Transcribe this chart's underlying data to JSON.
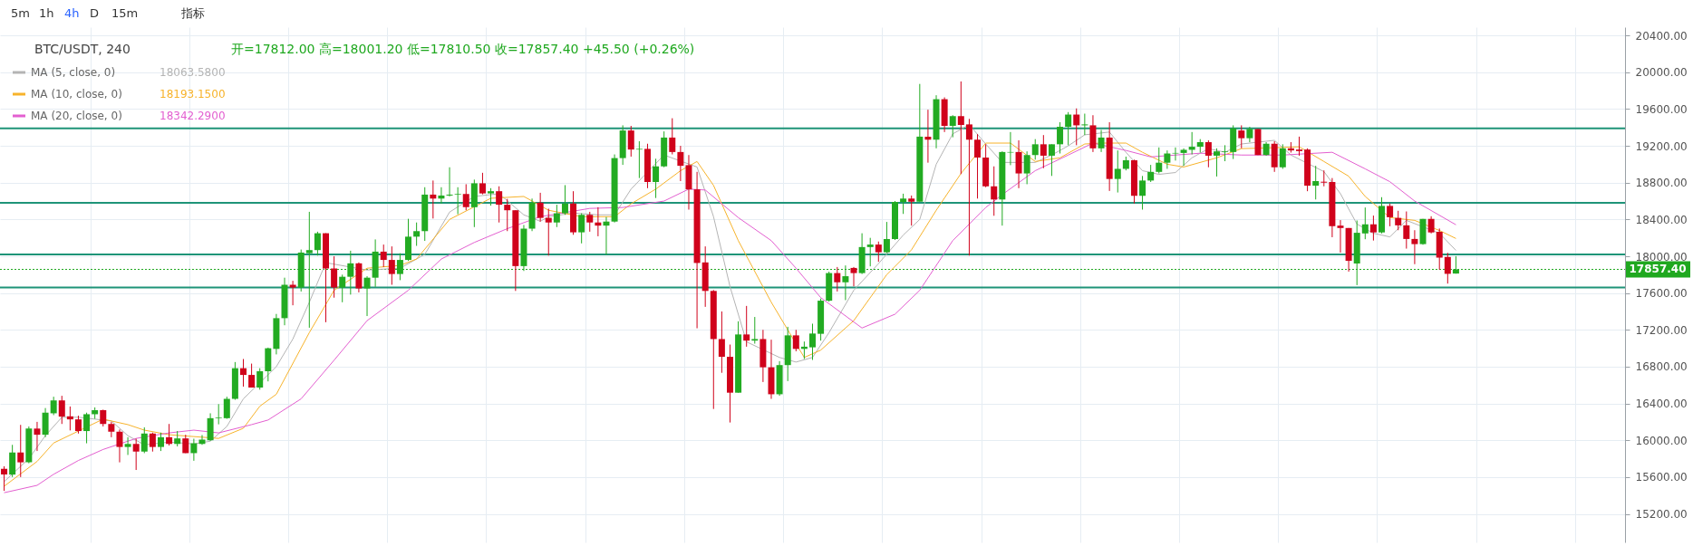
{
  "chart_data": {
    "type": "candlestick",
    "title": "BTC/USDT, 240",
    "subtitle": "开=17812.00  高=18001.20  低=17810.50  收=17857.40  +45.50 (+0.26%)",
    "categories": [
      null,
      null,
      null,
      null,
      null,
      null,
      null,
      null,
      null,
      null,
      null,
      null,
      null,
      null,
      null,
      null,
      null,
      null,
      null,
      null,
      null,
      null,
      null,
      null,
      null,
      null,
      null,
      null,
      null,
      null,
      null,
      null,
      null,
      null,
      null,
      null,
      null,
      null,
      null,
      null,
      null,
      null,
      null,
      null,
      null,
      null,
      null,
      null,
      null,
      null,
      null,
      null,
      null,
      null,
      null,
      null,
      null,
      null,
      null,
      null,
      null,
      null,
      null,
      null,
      null,
      null,
      null,
      null,
      null,
      null,
      null,
      null,
      null,
      null,
      null,
      null,
      null,
      null,
      null,
      null,
      null,
      null,
      null,
      null,
      null,
      null,
      null,
      null,
      null,
      null,
      null,
      null,
      null,
      null,
      null,
      null,
      null,
      null,
      null,
      null,
      null,
      null,
      null,
      null,
      null,
      null,
      null,
      null,
      null,
      null,
      null,
      null,
      null,
      null,
      null,
      null,
      null,
      null,
      null,
      null,
      null,
      null,
      null,
      null,
      null,
      null,
      null,
      null,
      null,
      null,
      null,
      null,
      null,
      null,
      null,
      null,
      null,
      null,
      null,
      null,
      null,
      null,
      null,
      null,
      null,
      null,
      null,
      null,
      null,
      null,
      null,
      null,
      null,
      null,
      null,
      null,
      null,
      null,
      null,
      null,
      null,
      null,
      null,
      null,
      null,
      null,
      null,
      null,
      null,
      null,
      null,
      null,
      null,
      null,
      null,
      null,
      null,
      null,
      null,
      null,
      null,
      null,
      null,
      null,
      null,
      null,
      null,
      null,
      null,
      null,
      null,
      null,
      null,
      null,
      null,
      null,
      null
    ],
    "ohlc": [
      [
        15690,
        15717,
        15450,
        15627
      ],
      [
        15627,
        15950,
        15600,
        15867
      ],
      [
        15867,
        16167,
        15600,
        15760
      ],
      [
        15760,
        16150,
        15750,
        16127
      ],
      [
        16127,
        16200,
        15883,
        16060
      ],
      [
        16060,
        16350,
        16033,
        16300
      ],
      [
        16293,
        16473,
        16273,
        16433
      ],
      [
        16433,
        16483,
        16177,
        16257
      ],
      [
        16260,
        16367,
        16107,
        16227
      ],
      [
        16227,
        16267,
        16073,
        16100
      ],
      [
        16100,
        16300,
        15967,
        16283
      ],
      [
        16283,
        16357,
        16233,
        16327
      ],
      [
        16327,
        16333,
        16150,
        16177
      ],
      [
        16177,
        16200,
        16033,
        16093
      ],
      [
        16093,
        16117,
        15760,
        15927
      ],
      [
        15927,
        16033,
        15840,
        15960
      ],
      [
        15960,
        16017,
        15677,
        15877
      ],
      [
        15877,
        16140,
        15860,
        16073
      ],
      [
        16073,
        16083,
        15877,
        15927
      ],
      [
        15927,
        16083,
        15883,
        16033
      ],
      [
        16033,
        16177,
        15943,
        15960
      ],
      [
        15960,
        16100,
        15933,
        16020
      ],
      [
        16020,
        16060,
        15860,
        15860
      ],
      [
        15860,
        16017,
        15777,
        15967
      ],
      [
        15960,
        16057,
        15950,
        16007
      ],
      [
        16000,
        16293,
        15993,
        16240
      ],
      [
        16240,
        16393,
        16173,
        16247
      ],
      [
        16240,
        16473,
        16233,
        16450
      ],
      [
        16450,
        16850,
        16440,
        16783
      ],
      [
        16783,
        16883,
        16583,
        16710
      ],
      [
        16710,
        16833,
        16573,
        16573
      ],
      [
        16573,
        16783,
        16550,
        16750
      ],
      [
        16750,
        17007,
        16640,
        17000
      ],
      [
        16993,
        17373,
        16933,
        17327
      ],
      [
        17327,
        17767,
        17250,
        17690
      ],
      [
        17690,
        17733,
        17467,
        17660
      ],
      [
        17660,
        18073,
        17617,
        18040
      ],
      [
        18033,
        18483,
        17223,
        18067
      ],
      [
        18067,
        18267,
        18007,
        18250
      ],
      [
        18250,
        18250,
        17283,
        17867
      ],
      [
        17867,
        18000,
        17550,
        17660
      ],
      [
        17660,
        17800,
        17500,
        17777
      ],
      [
        17777,
        18060,
        17583,
        17923
      ],
      [
        17923,
        17933,
        17607,
        17650
      ],
      [
        17650,
        17783,
        17350,
        17767
      ],
      [
        17767,
        18183,
        17667,
        18050
      ],
      [
        18050,
        18127,
        17883,
        17960
      ],
      [
        17960,
        18107,
        17690,
        17807
      ],
      [
        17807,
        18033,
        17740,
        17960
      ],
      [
        17960,
        18407,
        17950,
        18213
      ],
      [
        18213,
        18367,
        18113,
        18273
      ],
      [
        18273,
        18750,
        18167,
        18670
      ],
      [
        18670,
        18823,
        18410,
        18627
      ],
      [
        18627,
        18750,
        18573,
        18660
      ],
      [
        18660,
        18967,
        18650,
        18670
      ],
      [
        18670,
        18750,
        18457,
        18677
      ],
      [
        18677,
        18783,
        18500,
        18533
      ],
      [
        18533,
        18833,
        18317,
        18793
      ],
      [
        18793,
        18907,
        18673,
        18683
      ],
      [
        18683,
        18740,
        18550,
        18707
      ],
      [
        18707,
        18760,
        18367,
        18560
      ],
      [
        18560,
        18623,
        18273,
        18500
      ],
      [
        18500,
        18500,
        17623,
        17893
      ],
      [
        17893,
        18340,
        17840,
        18300
      ],
      [
        18300,
        18627,
        18273,
        18583
      ],
      [
        18583,
        18690,
        18377,
        18417
      ],
      [
        18417,
        18517,
        18007,
        18367
      ],
      [
        18367,
        18560,
        18317,
        18467
      ],
      [
        18467,
        18773,
        18450,
        18573
      ],
      [
        18573,
        18707,
        18233,
        18260
      ],
      [
        18260,
        18467,
        18140,
        18450
      ],
      [
        18450,
        18483,
        18267,
        18367
      ],
      [
        18367,
        18533,
        18217,
        18333
      ],
      [
        18333,
        18427,
        18017,
        18377
      ],
      [
        18377,
        19107,
        18367,
        19067
      ],
      [
        19067,
        19423,
        18993,
        19367
      ],
      [
        19367,
        19417,
        19083,
        19160
      ],
      [
        19160,
        19250,
        18850,
        19167
      ],
      [
        19167,
        19223,
        18740,
        18807
      ],
      [
        18807,
        19060,
        18633,
        18977
      ],
      [
        18977,
        19357,
        18967,
        19290
      ],
      [
        19290,
        19500,
        19107,
        19133
      ],
      [
        19133,
        19200,
        18817,
        18983
      ],
      [
        18990,
        19100,
        18507,
        18727
      ],
      [
        18727,
        18917,
        17217,
        17927
      ],
      [
        17933,
        18107,
        17450,
        17623
      ],
      [
        17623,
        17633,
        16340,
        17100
      ],
      [
        17100,
        17400,
        16733,
        16907
      ],
      [
        16907,
        17040,
        16193,
        16517
      ],
      [
        16517,
        17293,
        16517,
        17150
      ],
      [
        17150,
        17460,
        17017,
        17083
      ],
      [
        17083,
        17340,
        17050,
        17100
      ],
      [
        17100,
        17200,
        16633,
        16793
      ],
      [
        16793,
        17093,
        16450,
        16500
      ],
      [
        16500,
        16860,
        16483,
        16817
      ],
      [
        16817,
        17233,
        16643,
        17140
      ],
      [
        17140,
        17200,
        16967,
        16993
      ],
      [
        16993,
        17073,
        16883,
        17017
      ],
      [
        17010,
        17267,
        16873,
        17160
      ],
      [
        17157,
        17540,
        17083,
        17517
      ],
      [
        17517,
        17833,
        17507,
        17817
      ],
      [
        17817,
        17883,
        17617,
        17717
      ],
      [
        17717,
        17900,
        17523,
        17783
      ],
      [
        17873,
        17883,
        17673,
        17817
      ],
      [
        17817,
        18250,
        17807,
        18100
      ],
      [
        18100,
        18200,
        17890,
        18127
      ],
      [
        18127,
        18160,
        17940,
        18043
      ],
      [
        18043,
        18373,
        18033,
        18187
      ],
      [
        18187,
        18600,
        18177,
        18590
      ],
      [
        18590,
        18680,
        18460,
        18627
      ],
      [
        18627,
        18660,
        18333,
        18593
      ],
      [
        18593,
        19873,
        18593,
        19300
      ],
      [
        19300,
        19593,
        19017,
        19267
      ],
      [
        19267,
        19750,
        19173,
        19707
      ],
      [
        19707,
        19727,
        19350,
        19417
      ],
      [
        19417,
        19533,
        19293,
        19523
      ],
      [
        19523,
        19900,
        18893,
        19427
      ],
      [
        19433,
        19493,
        18007,
        19267
      ],
      [
        19267,
        19327,
        18627,
        19073
      ],
      [
        19073,
        19217,
        18750,
        18760
      ],
      [
        18760,
        18977,
        18440,
        18617
      ],
      [
        18617,
        19140,
        18333,
        19133
      ],
      [
        19127,
        19350,
        18990,
        19133
      ],
      [
        19133,
        19260,
        18740,
        18900
      ],
      [
        18900,
        19140,
        18783,
        19100
      ],
      [
        19100,
        19273,
        19050,
        19217
      ],
      [
        19217,
        19317,
        18957,
        19093
      ],
      [
        19093,
        19217,
        18873,
        19217
      ],
      [
        19217,
        19457,
        19117,
        19407
      ],
      [
        19407,
        19567,
        19207,
        19540
      ],
      [
        19540,
        19607,
        19207,
        19423
      ],
      [
        19423,
        19550,
        19317,
        19433
      ],
      [
        19423,
        19533,
        19133,
        19173
      ],
      [
        19173,
        19373,
        19133,
        19290
      ],
      [
        19290,
        19457,
        18710,
        18840
      ],
      [
        18840,
        19150,
        18693,
        18950
      ],
      [
        18950,
        19083,
        18933,
        19043
      ],
      [
        19043,
        19050,
        18573,
        18657
      ],
      [
        18657,
        18873,
        18507,
        18823
      ],
      [
        18823,
        18993,
        18807,
        18917
      ],
      [
        18917,
        19183,
        18900,
        19017
      ],
      [
        19017,
        19150,
        18950,
        19117
      ],
      [
        19117,
        19183,
        19040,
        19123
      ],
      [
        19123,
        19173,
        18983,
        19157
      ],
      [
        19157,
        19350,
        19107,
        19190
      ],
      [
        19190,
        19273,
        19127,
        19240
      ],
      [
        19240,
        19260,
        18967,
        19093
      ],
      [
        19093,
        19173,
        18867,
        19140
      ],
      [
        19133,
        19207,
        19033,
        19140
      ],
      [
        19133,
        19423,
        19057,
        19390
      ],
      [
        19367,
        19423,
        19173,
        19283
      ],
      [
        19283,
        19407,
        19240,
        19383
      ],
      [
        19383,
        19383,
        19100,
        19100
      ],
      [
        19100,
        19240,
        19093,
        19223
      ],
      [
        19223,
        19250,
        18917,
        18967
      ],
      [
        18967,
        19217,
        18950,
        19173
      ],
      [
        19173,
        19240,
        19127,
        19150
      ],
      [
        19160,
        19300,
        19093,
        19143
      ],
      [
        19160,
        19173,
        18707,
        18767
      ],
      [
        18767,
        18983,
        18617,
        18817
      ],
      [
        18810,
        18933,
        18760,
        18800
      ],
      [
        18807,
        18850,
        18207,
        18327
      ],
      [
        18333,
        18393,
        18040,
        18307
      ],
      [
        18307,
        18307,
        17833,
        17950
      ],
      [
        17921,
        18389,
        17686,
        18255
      ],
      [
        18248,
        18530,
        18185,
        18347
      ],
      [
        18347,
        18442,
        18171,
        18259
      ],
      [
        18259,
        18642,
        18248,
        18547
      ],
      [
        18547,
        18572,
        18326,
        18424
      ],
      [
        18417,
        18494,
        18283,
        18336
      ],
      [
        18336,
        18487,
        18083,
        18188
      ],
      [
        18188,
        18283,
        17914,
        18132
      ],
      [
        18132,
        18406,
        18125,
        18406
      ],
      [
        18406,
        18435,
        18248,
        18259
      ],
      [
        18266,
        18301,
        17854,
        17985
      ],
      [
        17992,
        18037,
        17703,
        17809
      ],
      [
        17812,
        18001.2,
        17810.5,
        17857.4
      ],
      null,
      null,
      null,
      null,
      null,
      null,
      null,
      null,
      null,
      null,
      null,
      null,
      null,
      null,
      null,
      null,
      null,
      null,
      null,
      null
    ],
    "colors": [
      "#d0021b",
      "#22ab22",
      "#d0021b",
      "#22ab22",
      "#d0021b",
      "#22ab22",
      "#22ab22",
      "#d0021b",
      "#d0021b",
      "#d0021b",
      "#22ab22",
      "#22ab22",
      "#d0021b",
      "#d0021b",
      "#d0021b",
      "#22ab22",
      "#d0021b",
      "#22ab22",
      "#d0021b",
      "#22ab22",
      "#d0021b",
      "#22ab22",
      "#d0021b",
      "#22ab22",
      "#22ab22",
      "#22ab22",
      "#22ab22",
      "#22ab22",
      "#22ab22",
      "#d0021b",
      "#d0021b",
      "#22ab22",
      "#22ab22",
      "#22ab22",
      "#22ab22",
      "#d0021b",
      "#22ab22",
      "#22ab22",
      "#22ab22",
      "#d0021b",
      "#d0021b",
      "#22ab22",
      "#22ab22",
      "#d0021b",
      "#22ab22",
      "#22ab22",
      "#d0021b",
      "#d0021b",
      "#22ab22",
      "#22ab22",
      "#22ab22",
      "#22ab22",
      "#d0021b",
      "#22ab22",
      "#22ab22",
      "#22ab22",
      "#d0021b",
      "#22ab22",
      "#d0021b",
      "#22ab22",
      "#d0021b",
      "#d0021b",
      "#d0021b",
      "#22ab22",
      "#22ab22",
      "#d0021b",
      "#d0021b",
      "#22ab22",
      "#22ab22",
      "#d0021b",
      "#22ab22",
      "#d0021b",
      "#d0021b",
      "#22ab22",
      "#22ab22",
      "#22ab22",
      "#d0021b",
      "#22ab22",
      "#d0021b",
      "#22ab22",
      "#22ab22",
      "#d0021b",
      "#d0021b",
      "#d0021b",
      "#d0021b",
      "#d0021b",
      "#d0021b",
      "#d0021b",
      "#d0021b",
      "#22ab22",
      "#d0021b",
      "#22ab22",
      "#d0021b",
      "#d0021b",
      "#22ab22",
      "#22ab22",
      "#d0021b",
      "#22ab22",
      "#22ab22",
      "#22ab22",
      "#22ab22",
      "#d0021b",
      "#22ab22",
      "#d0021b",
      "#22ab22",
      "#22ab22",
      "#d0021b",
      "#22ab22",
      "#22ab22",
      "#22ab22",
      "#d0021b",
      "#22ab22",
      "#d0021b",
      "#22ab22",
      "#d0021b",
      "#22ab22",
      "#d0021b",
      "#d0021b",
      "#d0021b",
      "#d0021b",
      "#d0021b",
      "#22ab22",
      "#22ab22",
      "#d0021b",
      "#22ab22",
      "#22ab22",
      "#d0021b",
      "#22ab22",
      "#22ab22",
      "#22ab22",
      "#d0021b",
      "#22ab22",
      "#d0021b",
      "#22ab22",
      "#d0021b",
      "#22ab22",
      "#22ab22",
      "#d0021b",
      "#22ab22",
      "#22ab22",
      "#22ab22",
      "#22ab22",
      "#22ab22",
      "#22ab22",
      "#22ab22",
      "#22ab22",
      "#d0021b",
      "#22ab22",
      "#22ab22",
      "#22ab22",
      "#d0021b",
      "#22ab22",
      "#d0021b",
      "#22ab22",
      "#d0021b",
      "#22ab22",
      "#d0021b",
      "#d0021b",
      "#d0021b",
      "#22ab22",
      "#d0021b",
      "#d0021b",
      "#d0021b",
      "#d0021b",
      "#22ab22",
      "#22ab22",
      "#d0021b",
      "#22ab22",
      "#d0021b",
      "#d0021b",
      "#d0021b",
      "#d0021b",
      "#22ab22",
      "#d0021b",
      "#d0021b",
      "#d0021b",
      "#22ab22",
      null,
      null,
      null,
      null,
      null,
      null,
      null,
      null,
      null,
      null,
      null,
      null,
      null,
      null,
      null,
      null,
      null,
      null,
      null,
      null
    ],
    "series": [
      {
        "name": "MA (5, close, 0)",
        "type": "line",
        "color": "#b4b4b4",
        "values": [
          15550,
          null,
          null,
          15800,
          null,
          16050,
          null,
          16250,
          null,
          16250,
          null,
          16230,
          null,
          16210,
          null,
          16050,
          null,
          15950,
          null,
          null,
          15980,
          null,
          null,
          15960,
          null,
          15990,
          null,
          16150,
          null,
          16450,
          null,
          null,
          null,
          16800,
          null,
          17100,
          null,
          17500,
          null,
          17930,
          null,
          null,
          null,
          null,
          17850,
          null,
          null,
          null,
          17870,
          null,
          null,
          18020,
          null,
          null,
          18480,
          null,
          null,
          18650,
          null,
          null,
          18680,
          null,
          null,
          18450,
          null,
          18380,
          18430,
          null,
          null,
          18470,
          null,
          null,
          18450,
          null,
          18450,
          null,
          18730,
          null,
          null,
          null,
          19100,
          null,
          null,
          null,
          18970,
          null,
          18430,
          null,
          17670,
          null,
          17070,
          null,
          null,
          null,
          16900,
          null,
          16850,
          null,
          16900,
          null,
          17170,
          null,
          null,
          17630,
          null,
          null,
          17920,
          null,
          null,
          18230,
          null,
          18400,
          null,
          19000,
          null,
          19330,
          null,
          19430,
          null,
          19220,
          null,
          19020,
          null,
          null,
          null,
          19020,
          null,
          19100,
          null,
          19200,
          null,
          19320,
          null,
          null,
          19350,
          null,
          19130,
          null,
          18930,
          null,
          18890,
          null,
          18910,
          null,
          19070,
          null,
          19170,
          null,
          19130,
          null,
          19220,
          null,
          null,
          null,
          19260,
          null,
          19100,
          null,
          null,
          null,
          18920,
          null,
          18680,
          null,
          18350,
          null,
          18250,
          null,
          18210,
          null,
          18390,
          null,
          18320,
          null,
          18250,
          null,
          18063.58,
          null,
          null,
          null,
          null,
          null,
          null,
          null,
          null,
          null,
          null,
          null,
          null,
          null,
          null,
          null,
          null,
          null,
          null,
          null,
          null
        ]
      },
      {
        "name": "MA (10, close, 0)",
        "type": "line",
        "color": "#f7b32b",
        "values": [
          15500,
          null,
          null,
          null,
          15770,
          null,
          15970,
          null,
          null,
          16100,
          null,
          null,
          16230,
          null,
          null,
          16170,
          null,
          16110,
          null,
          null,
          16060,
          null,
          null,
          16040,
          null,
          null,
          16020,
          null,
          null,
          16130,
          null,
          16370,
          null,
          16500,
          null,
          null,
          null,
          17170,
          null,
          null,
          17630,
          null,
          null,
          null,
          17870,
          null,
          null,
          null,
          17900,
          null,
          17970,
          null,
          null,
          null,
          18400,
          null,
          null,
          null,
          null,
          18630,
          null,
          null,
          null,
          18650,
          null,
          null,
          18500,
          null,
          null,
          null,
          18430,
          null,
          null,
          null,
          18430,
          null,
          18570,
          null,
          null,
          18730,
          null,
          null,
          18930,
          null,
          19030,
          null,
          18770,
          null,
          null,
          18170,
          null,
          null,
          null,
          17500,
          null,
          null,
          null,
          16900,
          null,
          16980,
          null,
          null,
          null,
          17300,
          null,
          null,
          null,
          17800,
          null,
          null,
          18070,
          null,
          null,
          18500,
          null,
          null,
          18900,
          null,
          null,
          19230,
          null,
          null,
          19230,
          null,
          null,
          19030,
          null,
          null,
          19070,
          null,
          null,
          19220,
          null,
          19230,
          null,
          null,
          19230,
          null,
          19130,
          null,
          null,
          19000,
          null,
          18970,
          null,
          null,
          null,
          19070,
          null,
          null,
          19170,
          null,
          null,
          null,
          19180,
          null,
          null,
          19190,
          null,
          null,
          19030,
          null,
          null,
          18870,
          null,
          18650,
          null,
          null,
          18420,
          null,
          null,
          18390,
          null,
          null,
          18280,
          null,
          18193.15,
          null,
          null,
          null,
          null,
          null,
          null,
          null,
          null,
          null,
          null,
          null,
          null,
          null,
          null,
          null,
          null,
          null,
          null,
          null,
          null
        ]
      },
      {
        "name": "MA (20, close, 0)",
        "type": "line",
        "color": "#e35fd0",
        "values": [
          15430,
          null,
          null,
          null,
          15510,
          null,
          15630,
          null,
          null,
          15780,
          null,
          null,
          15900,
          null,
          null,
          null,
          16020,
          null,
          null,
          null,
          16080,
          null,
          null,
          16110,
          null,
          null,
          16080,
          null,
          null,
          null,
          16170,
          null,
          16220,
          null,
          null,
          null,
          16450,
          null,
          null,
          null,
          16870,
          null,
          null,
          null,
          17300,
          null,
          null,
          null,
          null,
          17630,
          null,
          null,
          null,
          17970,
          null,
          null,
          null,
          18150,
          null,
          null,
          null,
          18300,
          null,
          null,
          null,
          18430,
          null,
          null,
          null,
          null,
          null,
          18520,
          null,
          null,
          null,
          18530,
          null,
          null,
          null,
          null,
          18600,
          null,
          null,
          18730,
          null,
          18720,
          null,
          null,
          null,
          18420,
          null,
          null,
          null,
          18170,
          null,
          null,
          17870,
          null,
          null,
          17550,
          null,
          null,
          null,
          null,
          17220,
          null,
          null,
          null,
          17370,
          null,
          null,
          17630,
          null,
          null,
          null,
          18170,
          null,
          null,
          null,
          18530,
          null,
          18670,
          null,
          null,
          null,
          18930,
          null,
          null,
          null,
          19100,
          null,
          null,
          19230,
          null,
          null,
          null,
          19150,
          null,
          null,
          19080,
          null,
          null,
          null,
          null,
          null,
          19120,
          null,
          null,
          null,
          null,
          19100,
          null,
          null,
          null,
          null,
          19100,
          null,
          null,
          null,
          null,
          null,
          19130,
          null,
          null,
          null,
          18950,
          null,
          null,
          18810,
          null,
          null,
          18600,
          null,
          null,
          null,
          null,
          18342.29,
          null,
          null,
          null,
          null,
          null,
          null,
          null,
          null,
          null,
          null,
          null,
          null,
          null,
          null,
          null,
          null,
          null,
          null,
          null,
          null
        ]
      }
    ],
    "ylim": [
      14890,
      20490
    ],
    "yticks": [
      {
        "value": 15200,
        "label": "15200.00"
      },
      {
        "value": 15600,
        "label": "15600.00"
      },
      {
        "value": 16000,
        "label": "16000.00"
      },
      {
        "value": 16400,
        "label": "16400.00"
      },
      {
        "value": 16800,
        "label": "16800.00"
      },
      {
        "value": 17200,
        "label": "17200.00"
      },
      {
        "value": 17600,
        "label": "17600.00"
      },
      {
        "value": 18000,
        "label": "18000.00"
      },
      {
        "value": 18400,
        "label": "18400.00"
      },
      {
        "value": 18800,
        "label": "18800.00"
      },
      {
        "value": 19200,
        "label": "19200.00"
      },
      {
        "value": 19600,
        "label": "19600.00"
      },
      {
        "value": 20000,
        "label": "20000.00"
      },
      {
        "value": 20400,
        "label": "20400.00"
      }
    ],
    "ref_lines": [
      {
        "axis": "y",
        "value": 19390,
        "color": "#1e9478"
      },
      {
        "axis": "y",
        "value": 18580,
        "color": "#1e9478"
      },
      {
        "axis": "y",
        "value": 18020,
        "color": "#1e9478"
      },
      {
        "axis": "y",
        "value": 17660,
        "color": "#1e9478"
      },
      {
        "axis": "y",
        "value": 17857.4,
        "label": "17857.40",
        "color": "#1fa81f",
        "line_style": "dotted"
      }
    ],
    "annotations": [
      "18063.5800",
      "18193.1500",
      "18342.2900",
      "5m",
      "1h",
      "4h",
      "D",
      "15m",
      "指标"
    ],
    "grid": true,
    "legend": "top left",
    "tick_labels": "y"
  }
}
